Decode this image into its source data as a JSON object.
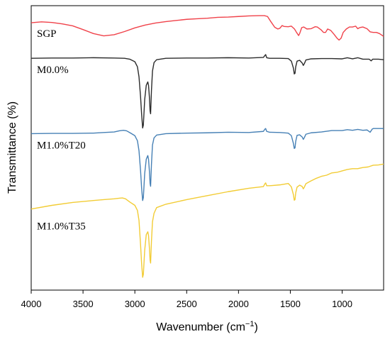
{
  "chart_data": {
    "type": "line",
    "title": "",
    "xlabel_main": "Wavenumber (cm",
    "xlabel_sup": "−1",
    "xlabel_close": ")",
    "ylabel": "Transmittance (%)",
    "xlim": [
      4000,
      600
    ],
    "x_reversed": true,
    "x_ticks": [
      4000,
      3500,
      3000,
      2500,
      2000,
      1500,
      1000
    ],
    "ylim": [
      0,
      100
    ],
    "y_ticks_shown": false,
    "grid": false,
    "legend": "none; series labelled inline at left",
    "series": [
      {
        "name": "SGP",
        "color": "#f0424a",
        "points": [
          [
            4000,
            94.0
          ],
          [
            3900,
            94.3
          ],
          [
            3800,
            94.1
          ],
          [
            3700,
            93.6
          ],
          [
            3600,
            92.9
          ],
          [
            3500,
            91.6
          ],
          [
            3400,
            90.2
          ],
          [
            3300,
            89.4
          ],
          [
            3200,
            89.8
          ],
          [
            3100,
            90.9
          ],
          [
            3000,
            92.2
          ],
          [
            2900,
            93.2
          ],
          [
            2800,
            93.9
          ],
          [
            2700,
            94.4
          ],
          [
            2600,
            94.8
          ],
          [
            2500,
            95.2
          ],
          [
            2400,
            95.4
          ],
          [
            2300,
            95.6
          ],
          [
            2200,
            95.9
          ],
          [
            2100,
            96.0
          ],
          [
            2000,
            96.2
          ],
          [
            1900,
            96.4
          ],
          [
            1800,
            96.5
          ],
          [
            1750,
            96.5
          ],
          [
            1720,
            96.2
          ],
          [
            1690,
            94.5
          ],
          [
            1650,
            92.4
          ],
          [
            1620,
            91.8
          ],
          [
            1600,
            92.1
          ],
          [
            1580,
            93.0
          ],
          [
            1560,
            92.7
          ],
          [
            1520,
            92.6
          ],
          [
            1490,
            92.8
          ],
          [
            1460,
            91.8
          ],
          [
            1440,
            90.6
          ],
          [
            1420,
            89.5
          ],
          [
            1410,
            90.2
          ],
          [
            1390,
            92.3
          ],
          [
            1370,
            92.5
          ],
          [
            1340,
            91.8
          ],
          [
            1300,
            91.9
          ],
          [
            1260,
            92.6
          ],
          [
            1240,
            92.5
          ],
          [
            1200,
            91.4
          ],
          [
            1180,
            90.6
          ],
          [
            1160,
            90.6
          ],
          [
            1140,
            91.8
          ],
          [
            1110,
            91.3
          ],
          [
            1080,
            90.0
          ],
          [
            1050,
            88.6
          ],
          [
            1030,
            87.9
          ],
          [
            1010,
            88.6
          ],
          [
            990,
            90.6
          ],
          [
            960,
            91.8
          ],
          [
            930,
            92.5
          ],
          [
            900,
            92.5
          ],
          [
            870,
            92.8
          ],
          [
            850,
            91.9
          ],
          [
            830,
            92.3
          ],
          [
            800,
            92.5
          ],
          [
            760,
            91.9
          ],
          [
            730,
            90.8
          ],
          [
            700,
            90.6
          ],
          [
            670,
            90.6
          ],
          [
            640,
            90.2
          ],
          [
            600,
            89.2
          ]
        ]
      },
      {
        "name": "M0.0%",
        "color": "#2b2b2b",
        "points": [
          [
            4000,
            81.5
          ],
          [
            3800,
            81.6
          ],
          [
            3600,
            81.6
          ],
          [
            3400,
            81.7
          ],
          [
            3200,
            81.6
          ],
          [
            3100,
            81.5
          ],
          [
            3050,
            81.2
          ],
          [
            3000,
            80.3
          ],
          [
            2975,
            78.5
          ],
          [
            2960,
            75.0
          ],
          [
            2945,
            68.0
          ],
          [
            2935,
            62.0
          ],
          [
            2925,
            57.0
          ],
          [
            2918,
            58.0
          ],
          [
            2905,
            67.0
          ],
          [
            2890,
            72.0
          ],
          [
            2875,
            73.2
          ],
          [
            2868,
            72.0
          ],
          [
            2860,
            68.0
          ],
          [
            2853,
            63.0
          ],
          [
            2848,
            62.0
          ],
          [
            2840,
            70.0
          ],
          [
            2830,
            77.0
          ],
          [
            2815,
            80.0
          ],
          [
            2790,
            81.0
          ],
          [
            2700,
            81.5
          ],
          [
            2500,
            81.6
          ],
          [
            2300,
            81.6
          ],
          [
            2100,
            81.7
          ],
          [
            1900,
            81.6
          ],
          [
            1760,
            81.8
          ],
          [
            1745,
            82.5
          ],
          [
            1738,
            82.8
          ],
          [
            1728,
            81.7
          ],
          [
            1700,
            81.5
          ],
          [
            1600,
            81.5
          ],
          [
            1520,
            81.4
          ],
          [
            1490,
            80.5
          ],
          [
            1470,
            78.0
          ],
          [
            1462,
            76.0
          ],
          [
            1455,
            76.2
          ],
          [
            1448,
            78.5
          ],
          [
            1435,
            80.5
          ],
          [
            1410,
            80.8
          ],
          [
            1385,
            79.8
          ],
          [
            1375,
            79.0
          ],
          [
            1365,
            79.6
          ],
          [
            1350,
            80.9
          ],
          [
            1300,
            81.3
          ],
          [
            1200,
            81.4
          ],
          [
            1100,
            81.4
          ],
          [
            1000,
            81.3
          ],
          [
            950,
            81.7
          ],
          [
            900,
            81.3
          ],
          [
            850,
            81.7
          ],
          [
            800,
            81.2
          ],
          [
            740,
            81.2
          ],
          [
            720,
            80.6
          ],
          [
            705,
            81.2
          ],
          [
            650,
            81.2
          ],
          [
            600,
            81.0
          ]
        ]
      },
      {
        "name": "M1.0%T20",
        "color": "#4680b5",
        "points": [
          [
            4000,
            55.0
          ],
          [
            3800,
            55.1
          ],
          [
            3600,
            55.1
          ],
          [
            3400,
            55.2
          ],
          [
            3300,
            55.4
          ],
          [
            3200,
            55.6
          ],
          [
            3150,
            56.0
          ],
          [
            3110,
            56.2
          ],
          [
            3080,
            56.0
          ],
          [
            3050,
            55.4
          ],
          [
            3000,
            54.3
          ],
          [
            2975,
            52.5
          ],
          [
            2960,
            49.0
          ],
          [
            2945,
            42.0
          ],
          [
            2935,
            36.0
          ],
          [
            2925,
            31.5
          ],
          [
            2918,
            32.5
          ],
          [
            2905,
            41.0
          ],
          [
            2890,
            46.0
          ],
          [
            2875,
            47.3
          ],
          [
            2868,
            46.0
          ],
          [
            2860,
            42.0
          ],
          [
            2853,
            37.5
          ],
          [
            2848,
            36.5
          ],
          [
            2840,
            44.0
          ],
          [
            2830,
            51.0
          ],
          [
            2815,
            53.5
          ],
          [
            2790,
            54.5
          ],
          [
            2700,
            55.0
          ],
          [
            2500,
            55.2
          ],
          [
            2300,
            55.3
          ],
          [
            2100,
            55.5
          ],
          [
            1900,
            55.4
          ],
          [
            1760,
            55.8
          ],
          [
            1745,
            56.6
          ],
          [
            1738,
            56.8
          ],
          [
            1728,
            55.8
          ],
          [
            1700,
            55.5
          ],
          [
            1600,
            55.4
          ],
          [
            1520,
            55.2
          ],
          [
            1490,
            54.3
          ],
          [
            1470,
            51.5
          ],
          [
            1462,
            49.8
          ],
          [
            1455,
            50.0
          ],
          [
            1448,
            52.3
          ],
          [
            1435,
            54.4
          ],
          [
            1410,
            54.6
          ],
          [
            1385,
            53.8
          ],
          [
            1375,
            53.0
          ],
          [
            1365,
            53.6
          ],
          [
            1350,
            54.8
          ],
          [
            1300,
            55.3
          ],
          [
            1200,
            55.6
          ],
          [
            1100,
            56.1
          ],
          [
            1000,
            56.1
          ],
          [
            950,
            56.4
          ],
          [
            900,
            56.2
          ],
          [
            850,
            56.5
          ],
          [
            800,
            56.2
          ],
          [
            760,
            56.3
          ],
          [
            730,
            55.5
          ],
          [
            710,
            56.6
          ],
          [
            700,
            56.8
          ],
          [
            650,
            56.8
          ],
          [
            600,
            56.8
          ]
        ]
      },
      {
        "name": "M1.0%T35",
        "color": "#f2cc35",
        "points": [
          [
            4000,
            28.5
          ],
          [
            3800,
            29.8
          ],
          [
            3600,
            30.8
          ],
          [
            3400,
            31.5
          ],
          [
            3300,
            31.8
          ],
          [
            3200,
            32.1
          ],
          [
            3150,
            32.3
          ],
          [
            3120,
            32.4
          ],
          [
            3090,
            32.1
          ],
          [
            3050,
            31.0
          ],
          [
            3000,
            29.8
          ],
          [
            2975,
            28.0
          ],
          [
            2960,
            24.5
          ],
          [
            2945,
            16.0
          ],
          [
            2935,
            9.5
          ],
          [
            2925,
            4.5
          ],
          [
            2918,
            5.5
          ],
          [
            2905,
            14.0
          ],
          [
            2890,
            19.5
          ],
          [
            2875,
            20.5
          ],
          [
            2868,
            19.2
          ],
          [
            2860,
            15.0
          ],
          [
            2853,
            10.5
          ],
          [
            2848,
            9.5
          ],
          [
            2840,
            17.0
          ],
          [
            2830,
            24.0
          ],
          [
            2815,
            27.0
          ],
          [
            2790,
            29.0
          ],
          [
            2700,
            30.2
          ],
          [
            2500,
            31.8
          ],
          [
            2300,
            33.2
          ],
          [
            2100,
            34.6
          ],
          [
            1900,
            35.8
          ],
          [
            1760,
            36.4
          ],
          [
            1745,
            37.4
          ],
          [
            1738,
            37.7
          ],
          [
            1728,
            36.7
          ],
          [
            1700,
            36.7
          ],
          [
            1600,
            37.0
          ],
          [
            1520,
            37.5
          ],
          [
            1490,
            36.3
          ],
          [
            1470,
            33.5
          ],
          [
            1462,
            31.6
          ],
          [
            1455,
            31.8
          ],
          [
            1448,
            34.2
          ],
          [
            1435,
            36.2
          ],
          [
            1410,
            36.9
          ],
          [
            1385,
            36.4
          ],
          [
            1375,
            35.6
          ],
          [
            1365,
            36.2
          ],
          [
            1350,
            37.4
          ],
          [
            1300,
            38.4
          ],
          [
            1250,
            39.3
          ],
          [
            1200,
            40.0
          ],
          [
            1150,
            40.4
          ],
          [
            1100,
            41.2
          ],
          [
            1050,
            41.4
          ],
          [
            1000,
            41.9
          ],
          [
            950,
            42.4
          ],
          [
            900,
            42.7
          ],
          [
            850,
            42.7
          ],
          [
            800,
            43.1
          ],
          [
            750,
            43.3
          ],
          [
            700,
            43.9
          ],
          [
            650,
            44.0
          ],
          [
            600,
            44.3
          ]
        ]
      }
    ]
  }
}
